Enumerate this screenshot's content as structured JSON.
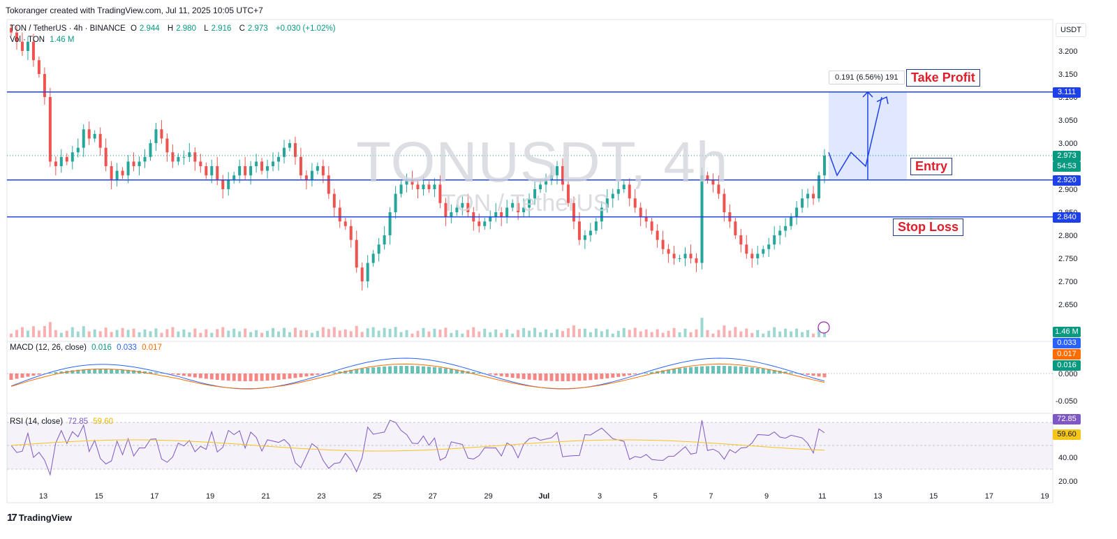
{
  "header": {
    "credit": "Tokoranger created with TradingView.com, Jul 11, 2025 10:05 UTC+7"
  },
  "legend": {
    "symbol": "TON / TetherUS · 4h · BINANCE",
    "o_label": "O",
    "o_value": "2.944",
    "h_label": "H",
    "h_value": "2.980",
    "l_label": "L",
    "l_value": "2.916",
    "c_label": "C",
    "c_value": "2.973",
    "change": "+0.030 (+1.02%)",
    "vol_label": "Vol · TON",
    "vol_value": "1.46 M"
  },
  "watermark": {
    "main": "TONUSDT, 4h",
    "sub": "TON / TetherUS"
  },
  "currency": "USDT",
  "annotations": {
    "take_profit": "Take Profit",
    "entry": "Entry",
    "stop_loss": "Stop Loss",
    "measure": "0.191 (6.56%) 191"
  },
  "macd_legend": {
    "label": "MACD (12, 26, close)",
    "v1": "0.016",
    "v2": "0.033",
    "v3": "0.017"
  },
  "rsi_legend": {
    "label": "RSI (14, close)",
    "v1": "72.85",
    "v2": "59.60"
  },
  "price_tags": {
    "tp": "3.111",
    "last": "2.973",
    "countdown": "54:53",
    "entry": "2.920",
    "sl": "2.840",
    "vol": "1.46 M",
    "macd_signal": "0.033",
    "macd_hist_small": "0.017",
    "macd_hist": "0.016",
    "rsi": "72.85",
    "rsi_ma": "59.60"
  },
  "colors": {
    "up": "#26a69a",
    "down": "#ef5350",
    "line": "#1e40e8",
    "rsi": "#7e57c2",
    "rsi_ma": "#f5c518",
    "macd": "#2962ff",
    "signal": "#ff6d00"
  },
  "footer": {
    "brand": "TradingView"
  },
  "chart_data": {
    "type": "candlestick",
    "price_axis": {
      "ticks": [
        "3.200",
        "3.150",
        "3.100",
        "3.050",
        "3.000",
        "2.950",
        "2.900",
        "2.850",
        "2.800",
        "2.750",
        "2.700",
        "2.650"
      ]
    },
    "time_axis": {
      "ticks": [
        "13",
        "15",
        "17",
        "19",
        "21",
        "23",
        "25",
        "27",
        "29",
        "Jul",
        "3",
        "5",
        "7",
        "9",
        "11",
        "13",
        "15",
        "17",
        "19"
      ]
    },
    "levels": {
      "take_profit": 3.111,
      "entry": 2.92,
      "stop_loss": 2.84,
      "last": 2.973
    },
    "closes": [
      3.24,
      3.22,
      3.2,
      3.22,
      3.18,
      3.15,
      3.1,
      2.96,
      2.95,
      2.97,
      2.96,
      2.98,
      2.99,
      3.03,
      3.01,
      3.02,
      2.99,
      2.95,
      2.92,
      2.94,
      2.93,
      2.96,
      2.95,
      2.96,
      2.97,
      3.0,
      3.03,
      3.01,
      2.98,
      2.96,
      2.97,
      2.97,
      2.98,
      2.96,
      2.95,
      2.93,
      2.95,
      2.92,
      2.9,
      2.92,
      2.93,
      2.95,
      2.93,
      2.95,
      2.96,
      2.94,
      2.95,
      2.96,
      2.97,
      2.99,
      3.0,
      2.97,
      2.93,
      2.92,
      2.94,
      2.95,
      2.93,
      2.89,
      2.86,
      2.83,
      2.82,
      2.79,
      2.73,
      2.7,
      2.74,
      2.76,
      2.78,
      2.8,
      2.85,
      2.89,
      2.91,
      2.92,
      2.91,
      2.9,
      2.91,
      2.9,
      2.91,
      2.87,
      2.84,
      2.85,
      2.86,
      2.87,
      2.85,
      2.83,
      2.82,
      2.83,
      2.84,
      2.85,
      2.84,
      2.86,
      2.87,
      2.85,
      2.86,
      2.88,
      2.9,
      2.91,
      2.92,
      2.93,
      2.95,
      2.91,
      2.87,
      2.83,
      2.79,
      2.8,
      2.81,
      2.83,
      2.86,
      2.88,
      2.89,
      2.9,
      2.91,
      2.88,
      2.86,
      2.84,
      2.83,
      2.81,
      2.79,
      2.77,
      2.76,
      2.75,
      2.75,
      2.76,
      2.75,
      2.74,
      2.93,
      2.92,
      2.91,
      2.89,
      2.85,
      2.83,
      2.8,
      2.78,
      2.76,
      2.75,
      2.76,
      2.77,
      2.78,
      2.8,
      2.81,
      2.82,
      2.84,
      2.86,
      2.88,
      2.89,
      2.88,
      2.93,
      2.973
    ],
    "rsi_ticks": [
      "72.85",
      "59.60",
      "40.00",
      "20.00"
    ],
    "macd_ticks": [
      "0.000",
      "-0.050"
    ]
  }
}
